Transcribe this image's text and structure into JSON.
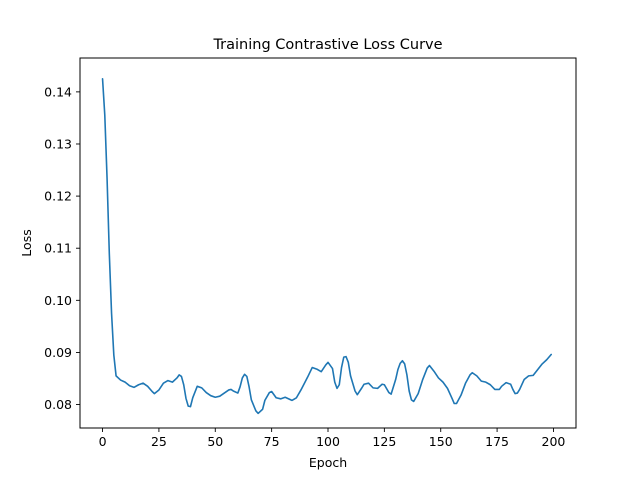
{
  "chart_data": {
    "type": "line",
    "title": "Training Contrastive Loss Curve",
    "xlabel": "Epoch",
    "ylabel": "Loss",
    "xlim": [
      -10,
      210
    ],
    "ylim": [
      0.0755,
      0.1465
    ],
    "grid": false,
    "legend": "none",
    "x_ticks": [
      0,
      25,
      50,
      75,
      100,
      125,
      150,
      175,
      200
    ],
    "x_tick_labels": [
      "0",
      "25",
      "50",
      "75",
      "100",
      "125",
      "150",
      "175",
      "200"
    ],
    "y_ticks": [
      0.08,
      0.09,
      0.1,
      0.11,
      0.12,
      0.13,
      0.14
    ],
    "y_tick_labels": [
      "0.08",
      "0.09",
      "0.10",
      "0.11",
      "0.12",
      "0.13",
      "0.14"
    ],
    "line_color": "#1f77b4",
    "series": [
      {
        "points": [
          [
            0,
            0.1425
          ],
          [
            1,
            0.1355
          ],
          [
            2,
            0.1235
          ],
          [
            3,
            0.109
          ],
          [
            4,
            0.0975
          ],
          [
            5,
            0.0895
          ],
          [
            6,
            0.0855
          ],
          [
            8,
            0.0847
          ],
          [
            10,
            0.0843
          ],
          [
            12,
            0.0836
          ],
          [
            14,
            0.0833
          ],
          [
            16,
            0.0838
          ],
          [
            18,
            0.0841
          ],
          [
            20,
            0.0835
          ],
          [
            22,
            0.0825
          ],
          [
            23,
            0.0821
          ],
          [
            25,
            0.0828
          ],
          [
            27,
            0.0841
          ],
          [
            29,
            0.0846
          ],
          [
            31,
            0.0843
          ],
          [
            33,
            0.0851
          ],
          [
            34,
            0.0857
          ],
          [
            35,
            0.0854
          ],
          [
            36,
            0.0838
          ],
          [
            37,
            0.0812
          ],
          [
            38,
            0.0797
          ],
          [
            39,
            0.0796
          ],
          [
            40,
            0.0813
          ],
          [
            42,
            0.0835
          ],
          [
            44,
            0.0832
          ],
          [
            46,
            0.0823
          ],
          [
            48,
            0.0817
          ],
          [
            50,
            0.0814
          ],
          [
            52,
            0.0816
          ],
          [
            54,
            0.0822
          ],
          [
            56,
            0.0828
          ],
          [
            57,
            0.0829
          ],
          [
            58,
            0.0826
          ],
          [
            60,
            0.0822
          ],
          [
            61,
            0.0834
          ],
          [
            62,
            0.0851
          ],
          [
            63,
            0.0858
          ],
          [
            64,
            0.0854
          ],
          [
            65,
            0.0834
          ],
          [
            66,
            0.0809
          ],
          [
            68,
            0.0788
          ],
          [
            69,
            0.0783
          ],
          [
            71,
            0.0791
          ],
          [
            72,
            0.0808
          ],
          [
            74,
            0.0823
          ],
          [
            75,
            0.0825
          ],
          [
            77,
            0.0813
          ],
          [
            79,
            0.0811
          ],
          [
            81,
            0.0814
          ],
          [
            84,
            0.0808
          ],
          [
            86,
            0.0813
          ],
          [
            88,
            0.0828
          ],
          [
            91,
            0.0853
          ],
          [
            93,
            0.0871
          ],
          [
            95,
            0.0868
          ],
          [
            97,
            0.0863
          ],
          [
            99,
            0.0876
          ],
          [
            100,
            0.0881
          ],
          [
            102,
            0.0869
          ],
          [
            103,
            0.0843
          ],
          [
            104,
            0.0831
          ],
          [
            105,
            0.0838
          ],
          [
            106,
            0.0871
          ],
          [
            107,
            0.0891
          ],
          [
            108,
            0.0892
          ],
          [
            109,
            0.0881
          ],
          [
            110,
            0.0855
          ],
          [
            112,
            0.0826
          ],
          [
            113,
            0.0819
          ],
          [
            115,
            0.0832
          ],
          [
            116,
            0.0839
          ],
          [
            118,
            0.0841
          ],
          [
            120,
            0.0832
          ],
          [
            122,
            0.0831
          ],
          [
            124,
            0.0839
          ],
          [
            125,
            0.0838
          ],
          [
            127,
            0.0823
          ],
          [
            128,
            0.082
          ],
          [
            130,
            0.0848
          ],
          [
            131,
            0.0867
          ],
          [
            132,
            0.0879
          ],
          [
            133,
            0.0884
          ],
          [
            134,
            0.0878
          ],
          [
            135,
            0.0857
          ],
          [
            136,
            0.0826
          ],
          [
            137,
            0.0809
          ],
          [
            138,
            0.0806
          ],
          [
            140,
            0.0821
          ],
          [
            142,
            0.0848
          ],
          [
            144,
            0.087
          ],
          [
            145,
            0.0875
          ],
          [
            147,
            0.0864
          ],
          [
            149,
            0.0851
          ],
          [
            151,
            0.0843
          ],
          [
            153,
            0.0831
          ],
          [
            155,
            0.0812
          ],
          [
            156,
            0.0802
          ],
          [
            157,
            0.0802
          ],
          [
            159,
            0.0818
          ],
          [
            161,
            0.0841
          ],
          [
            163,
            0.0857
          ],
          [
            164,
            0.0861
          ],
          [
            166,
            0.0855
          ],
          [
            168,
            0.0845
          ],
          [
            170,
            0.0843
          ],
          [
            172,
            0.0838
          ],
          [
            174,
            0.0829
          ],
          [
            176,
            0.0829
          ],
          [
            177,
            0.0835
          ],
          [
            179,
            0.0842
          ],
          [
            181,
            0.0839
          ],
          [
            182,
            0.0829
          ],
          [
            183,
            0.0821
          ],
          [
            184,
            0.0822
          ],
          [
            185,
            0.0829
          ],
          [
            187,
            0.0848
          ],
          [
            189,
            0.0855
          ],
          [
            191,
            0.0856
          ],
          [
            193,
            0.0867
          ],
          [
            195,
            0.0878
          ],
          [
            197,
            0.0886
          ],
          [
            199,
            0.0896
          ]
        ]
      }
    ]
  }
}
